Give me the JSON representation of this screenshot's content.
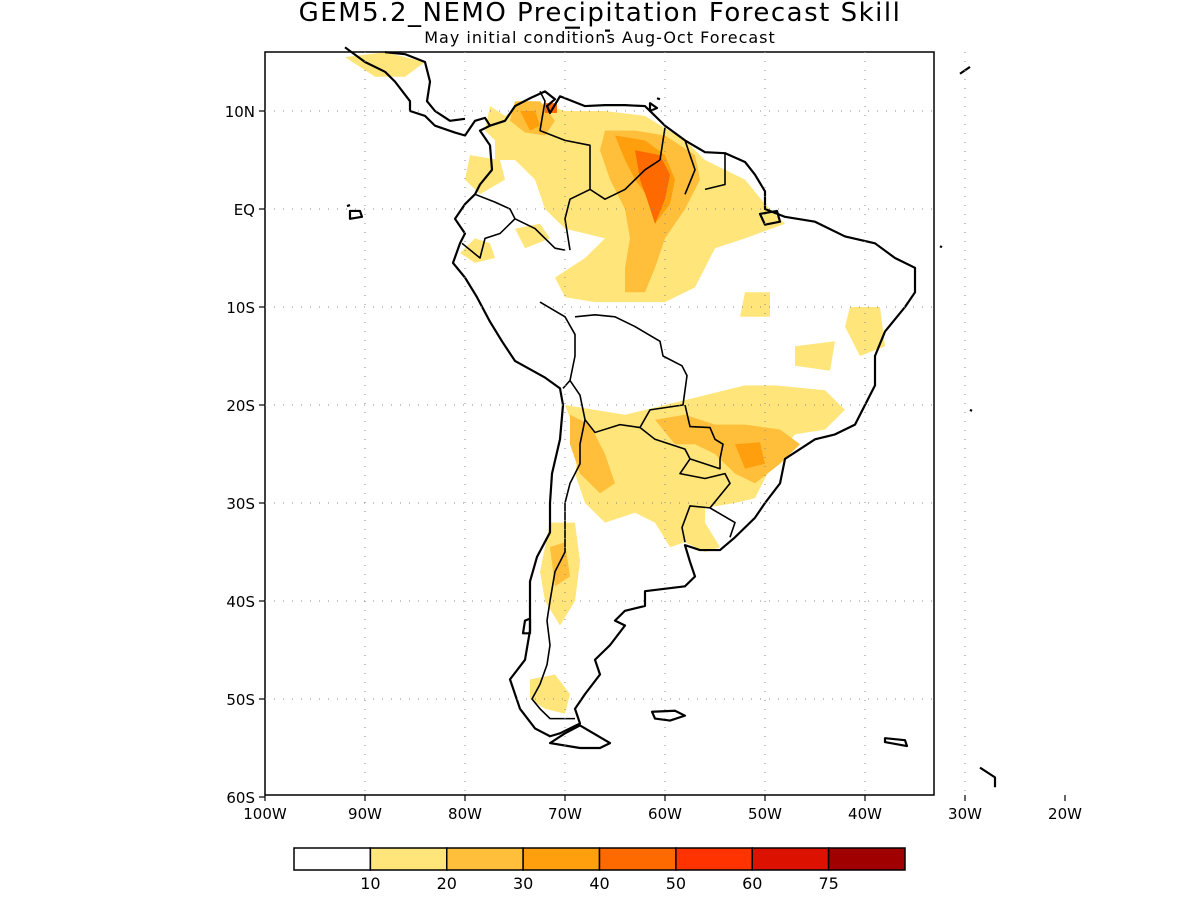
{
  "title": "GEM5.2_NEMO Precipitation Forecast Skill",
  "subtitle": "May initial conditions  Aug-Oct Forecast",
  "map": {
    "lon_range": [
      -100,
      -20
    ],
    "lat_range": [
      -60,
      15
    ],
    "lat_ticks": [
      {
        "value": 10,
        "label": "10N"
      },
      {
        "value": 0,
        "label": "EQ"
      },
      {
        "value": -10,
        "label": "10S"
      },
      {
        "value": -20,
        "label": "20S"
      },
      {
        "value": -30,
        "label": "30S"
      },
      {
        "value": -40,
        "label": "40S"
      },
      {
        "value": -50,
        "label": "50S"
      },
      {
        "value": -60,
        "label": "60S"
      }
    ],
    "lon_ticks": [
      {
        "value": -100,
        "label": "100W"
      },
      {
        "value": -90,
        "label": "90W"
      },
      {
        "value": -80,
        "label": "80W"
      },
      {
        "value": -70,
        "label": "70W"
      },
      {
        "value": -60,
        "label": "60W"
      },
      {
        "value": -50,
        "label": "50W"
      },
      {
        "value": -40,
        "label": "40W"
      },
      {
        "value": -30,
        "label": "30W"
      },
      {
        "value": -20,
        "label": "20W"
      }
    ],
    "grid": "dotted"
  },
  "colorbar": {
    "colors": [
      "#ffffff",
      "#ffe57a",
      "#ffbf3b",
      "#ff9f0e",
      "#ff6a00",
      "#ff3300",
      "#dd1100",
      "#a00000"
    ],
    "labels": [
      "10",
      "20",
      "30",
      "40",
      "50",
      "60",
      "75"
    ]
  },
  "colors": {
    "c1": "#ffe57a",
    "c2": "#ffbf3b",
    "c3": "#ff9f0e",
    "c4": "#ff6a00"
  }
}
